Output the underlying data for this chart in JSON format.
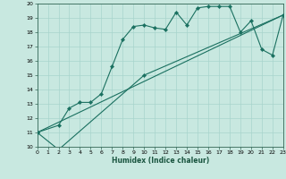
{
  "xlabel": "Humidex (Indice chaleur)",
  "bg_color": "#c8e8e0",
  "grid_color": "#a8d4cc",
  "line_color": "#1a7060",
  "spine_color": "#336655",
  "xlim": [
    0,
    23
  ],
  "ylim": [
    10,
    20
  ],
  "yticks": [
    10,
    11,
    12,
    13,
    14,
    15,
    16,
    17,
    18,
    19,
    20
  ],
  "xticks": [
    0,
    1,
    2,
    3,
    4,
    5,
    6,
    7,
    8,
    9,
    10,
    11,
    12,
    13,
    14,
    15,
    16,
    17,
    18,
    19,
    20,
    21,
    22,
    23
  ],
  "series1_x": [
    0,
    2,
    3,
    4,
    5,
    6,
    7,
    8,
    9,
    10,
    11,
    12,
    13,
    14,
    15,
    16,
    17,
    18,
    19,
    20,
    21,
    22,
    23
  ],
  "series1_y": [
    11.0,
    11.5,
    12.7,
    13.1,
    13.1,
    13.7,
    15.6,
    17.5,
    18.4,
    18.5,
    18.3,
    18.2,
    19.4,
    18.5,
    19.7,
    19.8,
    19.8,
    19.8,
    18.0,
    18.8,
    16.8,
    16.4,
    19.2
  ],
  "series2_x": [
    0,
    2,
    10,
    23
  ],
  "series2_y": [
    11.0,
    9.8,
    15.0,
    19.2
  ],
  "series3_x": [
    0,
    23
  ],
  "series3_y": [
    11.0,
    19.2
  ],
  "tick_fontsize": 4.5,
  "xlabel_fontsize": 5.5,
  "marker_size": 2.2,
  "line_width": 0.8
}
